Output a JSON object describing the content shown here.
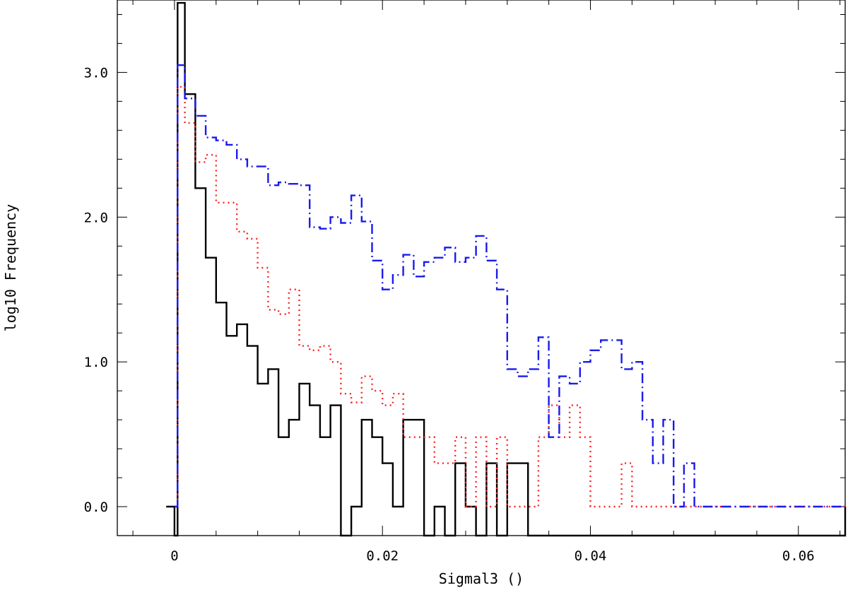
{
  "chart_data": {
    "type": "line",
    "title": "",
    "xlabel": "Sigmal3 ()",
    "ylabel": "log10 Frequency",
    "xlim": [
      -0.0055,
      0.0645
    ],
    "ylim": [
      -0.2,
      3.5
    ],
    "xticks": [
      0,
      0.02,
      0.04,
      0.06
    ],
    "xtick_labels": [
      "0",
      "0.02",
      "0.04",
      "0.06"
    ],
    "yticks": [
      0.0,
      1.0,
      2.0,
      3.0
    ],
    "ytick_labels": [
      "0.0",
      "1.0",
      "2.0",
      "3.0"
    ],
    "grid": false,
    "legend": "none",
    "step_style": "histogram",
    "series": [
      {
        "color": "#000000",
        "dash": "solid",
        "x": [
          -0.0008,
          0.0,
          0.0003,
          0.001,
          0.002,
          0.003,
          0.004,
          0.005,
          0.006,
          0.007,
          0.008,
          0.009,
          0.01,
          0.011,
          0.012,
          0.013,
          0.014,
          0.015,
          0.016,
          0.017,
          0.018,
          0.019,
          0.02,
          0.021,
          0.022,
          0.023,
          0.024,
          0.025,
          0.026,
          0.027,
          0.028,
          0.029,
          0.03,
          0.031,
          0.032,
          0.033,
          0.034,
          0.0645
        ],
        "y": [
          0.0,
          -0.2,
          3.48,
          2.85,
          2.2,
          1.72,
          1.41,
          1.18,
          1.26,
          1.11,
          0.85,
          0.95,
          0.48,
          0.6,
          0.85,
          0.7,
          0.48,
          0.7,
          -0.2,
          0.0,
          0.6,
          0.48,
          0.3,
          0.0,
          0.6,
          0.6,
          -0.2,
          0.0,
          -0.2,
          0.3,
          0.0,
          -0.2,
          0.3,
          -0.2,
          0.3,
          0.3,
          -0.2,
          0.0
        ]
      },
      {
        "color": "#ff2020",
        "dash": "dotted",
        "x": [
          0.0,
          0.0003,
          0.001,
          0.002,
          0.003,
          0.004,
          0.005,
          0.006,
          0.007,
          0.008,
          0.009,
          0.01,
          0.011,
          0.012,
          0.013,
          0.014,
          0.015,
          0.016,
          0.017,
          0.018,
          0.019,
          0.02,
          0.021,
          0.022,
          0.023,
          0.024,
          0.025,
          0.026,
          0.027,
          0.028,
          0.029,
          0.03,
          0.031,
          0.032,
          0.033,
          0.034,
          0.035,
          0.036,
          0.037,
          0.038,
          0.039,
          0.04,
          0.041,
          0.042,
          0.043,
          0.044,
          0.0645
        ],
        "y": [
          0.0,
          2.9,
          2.65,
          2.38,
          2.43,
          2.1,
          2.1,
          1.9,
          1.85,
          1.65,
          1.36,
          1.33,
          1.5,
          1.11,
          1.08,
          1.11,
          1.0,
          0.78,
          0.72,
          0.9,
          0.8,
          0.7,
          0.78,
          0.48,
          0.48,
          0.48,
          0.3,
          0.3,
          0.48,
          0.0,
          0.48,
          0.0,
          0.48,
          0.0,
          0.0,
          0.0,
          0.48,
          0.7,
          0.48,
          0.7,
          0.48,
          0.0,
          0.0,
          0.0,
          0.3,
          0.0,
          0.0
        ]
      },
      {
        "color": "#1a1aee",
        "dash": "dash-dot",
        "x": [
          0.0,
          0.0003,
          0.001,
          0.002,
          0.003,
          0.004,
          0.005,
          0.006,
          0.007,
          0.008,
          0.009,
          0.01,
          0.011,
          0.012,
          0.013,
          0.014,
          0.015,
          0.016,
          0.017,
          0.018,
          0.019,
          0.02,
          0.021,
          0.022,
          0.023,
          0.024,
          0.025,
          0.026,
          0.027,
          0.028,
          0.029,
          0.03,
          0.031,
          0.032,
          0.033,
          0.034,
          0.035,
          0.036,
          0.037,
          0.038,
          0.039,
          0.04,
          0.041,
          0.042,
          0.043,
          0.044,
          0.045,
          0.046,
          0.047,
          0.048,
          0.049,
          0.05,
          0.0645
        ],
        "y": [
          0.0,
          3.05,
          2.82,
          2.7,
          2.55,
          2.53,
          2.5,
          2.4,
          2.35,
          2.35,
          2.22,
          2.24,
          2.23,
          2.22,
          1.93,
          1.92,
          2.0,
          1.96,
          2.15,
          1.97,
          1.7,
          1.5,
          1.6,
          1.74,
          1.59,
          1.69,
          1.72,
          1.79,
          1.69,
          1.72,
          1.87,
          1.7,
          1.5,
          0.95,
          0.9,
          0.95,
          1.17,
          0.48,
          0.9,
          0.85,
          1.0,
          1.08,
          1.15,
          1.15,
          0.95,
          1.0,
          0.6,
          0.3,
          0.6,
          0.0,
          0.3,
          0.0,
          0.0
        ]
      }
    ]
  }
}
